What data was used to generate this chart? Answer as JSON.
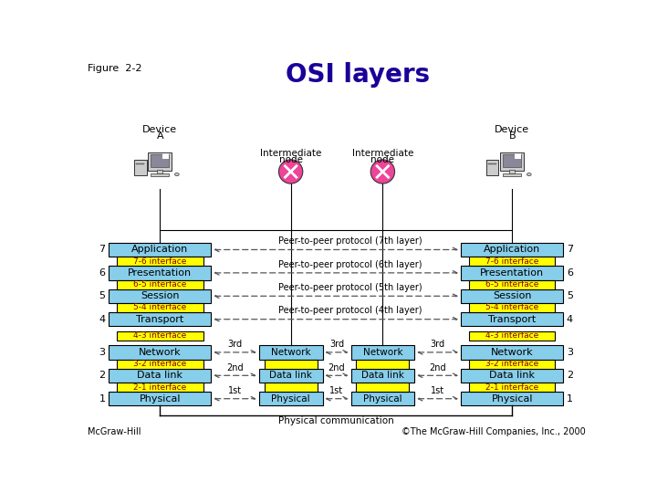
{
  "title": "OSI layers",
  "figure_label": "Figure  2-2",
  "footer_left": "McGraw-Hill",
  "footer_right": "©The McGraw-Hill Companies, Inc., 2000",
  "bg_color": "#ffffff",
  "title_color": "#1a0099",
  "layer_box_color": "#87CEEB",
  "interface_box_color": "#FFFF00",
  "layers": [
    "Application",
    "Presentation",
    "Session",
    "Transport",
    "Network",
    "Data link",
    "Physical"
  ],
  "layer_numbers": [
    7,
    6,
    5,
    4,
    3,
    2,
    1
  ],
  "interfaces": [
    "7-6 interface",
    "6-5 interface",
    "5-4 interface",
    "4-3 interface",
    "3-2 interface",
    "2-1 interface"
  ],
  "peer_protocols": [
    "Peer-to-peer protocol (7th layer)",
    "Peer-to-peer protocol (6th layer)",
    "Peer-to-peer protocol (5th layer)",
    "Peer-to-peer protocol (4th layer)"
  ],
  "intermediate_layers": [
    "Network",
    "Data link",
    "Physical"
  ],
  "intermediate_labels": [
    "3rd",
    "2nd",
    "1st"
  ],
  "physical_comm_label": "Physical communication",
  "intermediate_node_label": "Intermediate\nnode",
  "device_a_label": "Device\nA",
  "device_b_label": "Device\nB"
}
